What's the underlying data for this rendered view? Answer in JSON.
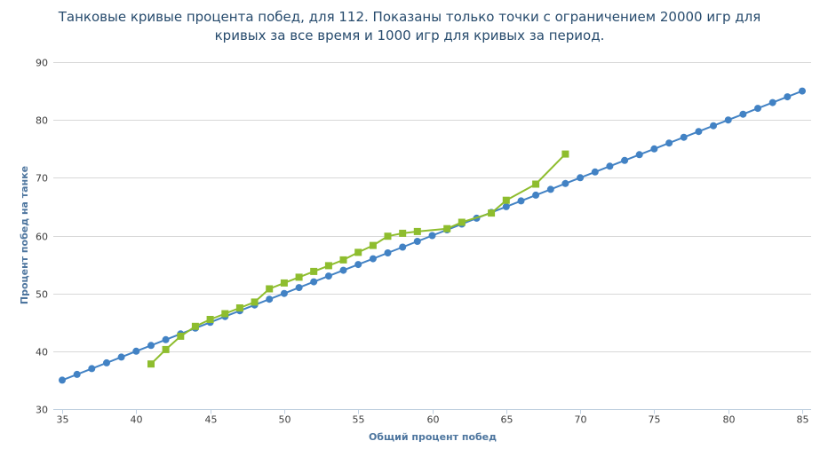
{
  "chart_data": {
    "type": "line",
    "title_lines": [
      "Танковые кривые процента побед, для 112. Показаны только точки с ограничением 20000 игр для",
      "кривых за все время и 1000 игр для кривых за период."
    ],
    "xlabel": "Общий процент побед",
    "ylabel": "Процент побед на танке",
    "xlim": [
      35,
      85
    ],
    "ylim": [
      30,
      90
    ],
    "xticks": [
      35,
      40,
      45,
      50,
      55,
      60,
      65,
      70,
      75,
      80,
      85
    ],
    "yticks": [
      30,
      40,
      50,
      60,
      70,
      80,
      90
    ],
    "grid": true,
    "legend": "none",
    "series": [
      {
        "color": "#4282c4",
        "marker": "circle",
        "x": [
          35,
          36,
          37,
          38,
          39,
          40,
          41,
          42,
          43,
          44,
          45,
          46,
          47,
          48,
          49,
          50,
          51,
          52,
          53,
          54,
          55,
          56,
          57,
          58,
          59,
          60,
          61,
          62,
          63,
          64,
          65,
          66,
          67,
          68,
          69,
          70,
          71,
          72,
          73,
          74,
          75,
          76,
          77,
          78,
          79,
          80,
          81,
          82,
          83,
          84,
          85
        ],
        "y": [
          35,
          36,
          37,
          38,
          39,
          40,
          41,
          42,
          43,
          44,
          45,
          46,
          47,
          48,
          49,
          50,
          51,
          52,
          53,
          54,
          55,
          56,
          57,
          58,
          59,
          60,
          61,
          62,
          63,
          64,
          65,
          66,
          67,
          68,
          69,
          70,
          71,
          72,
          73,
          74,
          75,
          76,
          77,
          78,
          79,
          80,
          81,
          82,
          83,
          84,
          85
        ]
      },
      {
        "color": "#8ebd2e",
        "marker": "square",
        "x": [
          41,
          42,
          43,
          44,
          45,
          46,
          47,
          48,
          49,
          50,
          51,
          52,
          53,
          54,
          55,
          56,
          57,
          58,
          59,
          61,
          62,
          64,
          65,
          67,
          69
        ],
        "y": [
          37.8,
          40.3,
          42.6,
          44.3,
          45.5,
          46.5,
          47.5,
          48.5,
          50.8,
          51.8,
          52.8,
          53.8,
          54.8,
          55.8,
          57.1,
          58.3,
          59.9,
          60.4,
          60.7,
          61.2,
          62.3,
          63.9,
          66.1,
          68.9,
          74.1
        ]
      }
    ]
  }
}
